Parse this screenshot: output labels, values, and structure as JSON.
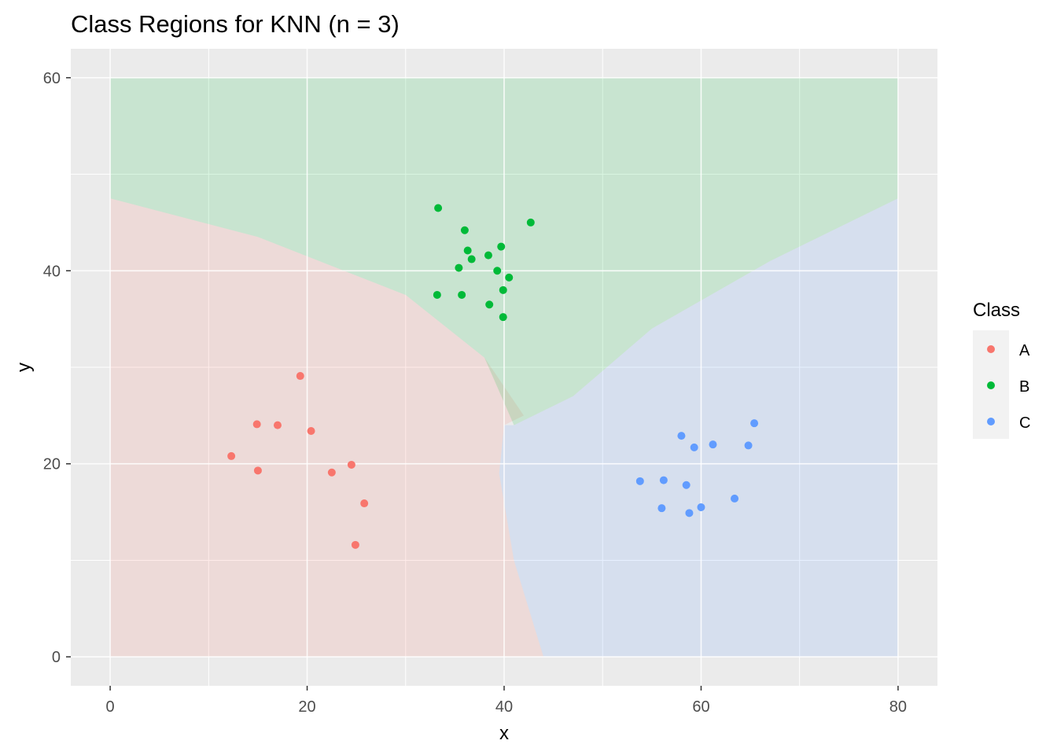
{
  "chart_data": {
    "type": "scatter",
    "title": "Class Regions for KNN (n = 3)",
    "xlabel": "x",
    "ylabel": "y",
    "xlim": [
      -4,
      84
    ],
    "ylim": [
      -3,
      63
    ],
    "x_ticks": [
      0,
      20,
      40,
      60,
      80
    ],
    "y_ticks": [
      0,
      20,
      40,
      60
    ],
    "grid": true,
    "legend": {
      "title": "Class",
      "position": "right",
      "entries": [
        "A",
        "B",
        "C"
      ]
    },
    "colors": {
      "A": "#F8766D",
      "B": "#00BA38",
      "C": "#619CFF"
    },
    "background": {
      "panel": "#EBEBEB",
      "grid": "#FFFFFF"
    },
    "regions": [
      {
        "class": "A",
        "polygon": [
          [
            0,
            0
          ],
          [
            0,
            47.5
          ],
          [
            15,
            43.5
          ],
          [
            30,
            37.5
          ],
          [
            38,
            31
          ],
          [
            42,
            25
          ],
          [
            40,
            24
          ],
          [
            39.5,
            19
          ],
          [
            41,
            10
          ],
          [
            44,
            0
          ]
        ]
      },
      {
        "class": "B",
        "polygon": [
          [
            0,
            47.5
          ],
          [
            0,
            60
          ],
          [
            80,
            60
          ],
          [
            80,
            47.5
          ],
          [
            67,
            41
          ],
          [
            55,
            34
          ],
          [
            47,
            27
          ],
          [
            41,
            24
          ],
          [
            38,
            31
          ],
          [
            30,
            37.5
          ],
          [
            15,
            43.5
          ]
        ]
      },
      {
        "class": "C",
        "polygon": [
          [
            44,
            0
          ],
          [
            80,
            0
          ],
          [
            80,
            47.5
          ],
          [
            67,
            41
          ],
          [
            55,
            34
          ],
          [
            47,
            27
          ],
          [
            41,
            24
          ],
          [
            40,
            24
          ],
          [
            39.5,
            19
          ],
          [
            41,
            10
          ]
        ]
      }
    ],
    "series": [
      {
        "name": "A",
        "points": [
          [
            12.3,
            20.8
          ],
          [
            14.9,
            24.1
          ],
          [
            15.0,
            19.3
          ],
          [
            17.0,
            24.0
          ],
          [
            19.3,
            29.1
          ],
          [
            20.4,
            23.4
          ],
          [
            22.5,
            19.1
          ],
          [
            24.5,
            19.9
          ],
          [
            25.8,
            15.9
          ],
          [
            24.9,
            11.6
          ]
        ]
      },
      {
        "name": "B",
        "points": [
          [
            33.3,
            46.5
          ],
          [
            33.2,
            37.5
          ],
          [
            35.4,
            40.3
          ],
          [
            35.7,
            37.5
          ],
          [
            36.0,
            44.2
          ],
          [
            36.3,
            42.1
          ],
          [
            36.7,
            41.2
          ],
          [
            38.4,
            41.6
          ],
          [
            38.5,
            36.5
          ],
          [
            39.3,
            40.0
          ],
          [
            39.7,
            42.5
          ],
          [
            39.9,
            38.0
          ],
          [
            40.5,
            39.3
          ],
          [
            39.9,
            35.2
          ],
          [
            42.7,
            45.0
          ]
        ]
      },
      {
        "name": "C",
        "points": [
          [
            53.8,
            18.2
          ],
          [
            56.0,
            15.4
          ],
          [
            56.2,
            18.3
          ],
          [
            58.0,
            22.9
          ],
          [
            58.5,
            17.8
          ],
          [
            58.8,
            14.9
          ],
          [
            59.3,
            21.7
          ],
          [
            60.0,
            15.5
          ],
          [
            61.2,
            22.0
          ],
          [
            63.4,
            16.4
          ],
          [
            64.8,
            21.9
          ],
          [
            65.4,
            24.2
          ]
        ]
      }
    ]
  }
}
